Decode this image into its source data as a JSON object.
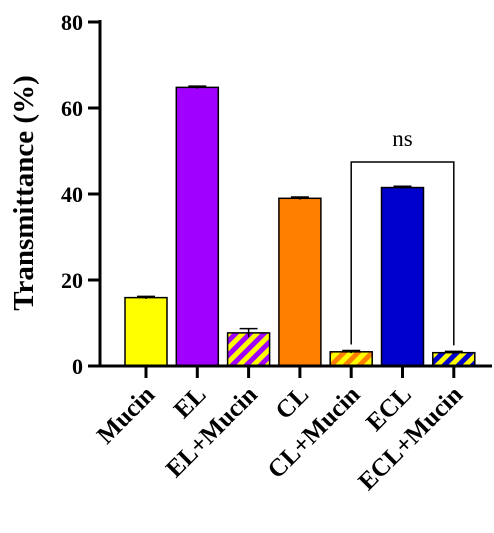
{
  "chart_data": {
    "type": "bar",
    "title": "",
    "xlabel": "",
    "ylabel": "Transmittance (%)",
    "ylim": [
      0,
      80
    ],
    "yticks": [
      "0",
      "20",
      "40",
      "60",
      "80"
    ],
    "categories": [
      "Mucin",
      "EL",
      "EL+Mucin",
      "CL",
      "CL+Mucin",
      "ECL",
      "ECL+Mucin"
    ],
    "values": [
      15.9,
      64.8,
      7.7,
      39.0,
      3.3,
      41.5,
      3.1
    ],
    "errors": [
      0.3,
      0.3,
      1.0,
      0.3,
      0.3,
      0.3,
      0.3
    ],
    "bars": [
      {
        "fill": "#ffff00",
        "stripe": null
      },
      {
        "fill": "#a000ff",
        "stripe": null
      },
      {
        "fill": "#ffff00",
        "stripe": "#a000ff"
      },
      {
        "fill": "#ff7f00",
        "stripe": null
      },
      {
        "fill": "#ffff00",
        "stripe": "#ff7f00"
      },
      {
        "fill": "#0000cc",
        "stripe": null
      },
      {
        "fill": "#ffff00",
        "stripe": "#0000cc"
      }
    ],
    "significance": {
      "from": 4,
      "to": 6,
      "label": "ns"
    },
    "grid": false,
    "legend": "none"
  }
}
